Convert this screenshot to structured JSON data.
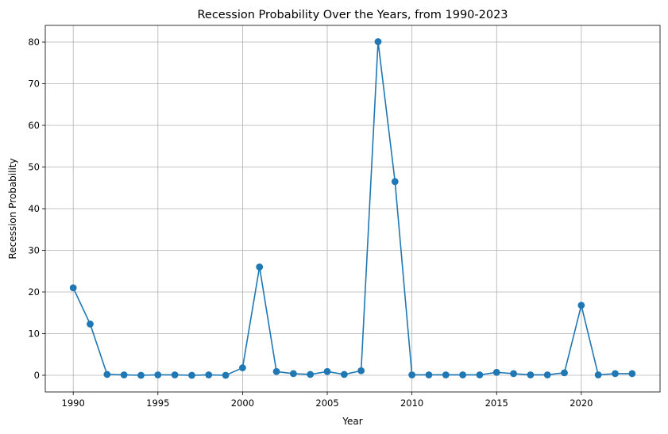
{
  "chart_data": {
    "type": "line",
    "title": "Recession Probability Over the Years, from 1990-2023",
    "xlabel": "Year",
    "ylabel": "Recession Probability",
    "xlim": [
      1988.35,
      2024.65
    ],
    "ylim": [
      -4.0,
      84.0
    ],
    "xticks": [
      1990,
      1995,
      2000,
      2005,
      2010,
      2015,
      2020
    ],
    "yticks": [
      0,
      10,
      20,
      30,
      40,
      50,
      60,
      70,
      80
    ],
    "grid": true,
    "line_color": "#1f77b4",
    "marker": "circle",
    "series": [
      {
        "x": [
          1990,
          1991,
          1992,
          1993,
          1994,
          1995,
          1996,
          1997,
          1998,
          1999,
          2000,
          2001,
          2002,
          2003,
          2004,
          2005,
          2006,
          2007,
          2008,
          2009,
          2010,
          2011,
          2012,
          2013,
          2014,
          2015,
          2016,
          2017,
          2018,
          2019,
          2020,
          2021,
          2022,
          2023
        ],
        "values": [
          21.0,
          12.3,
          0.2,
          0.1,
          0.0,
          0.1,
          0.1,
          0.0,
          0.1,
          0.0,
          1.8,
          26.0,
          0.9,
          0.4,
          0.2,
          0.9,
          0.2,
          1.1,
          80.1,
          46.5,
          0.1,
          0.1,
          0.1,
          0.1,
          0.1,
          0.7,
          0.4,
          0.1,
          0.1,
          0.6,
          16.8,
          0.1,
          0.4,
          0.4
        ]
      }
    ]
  }
}
